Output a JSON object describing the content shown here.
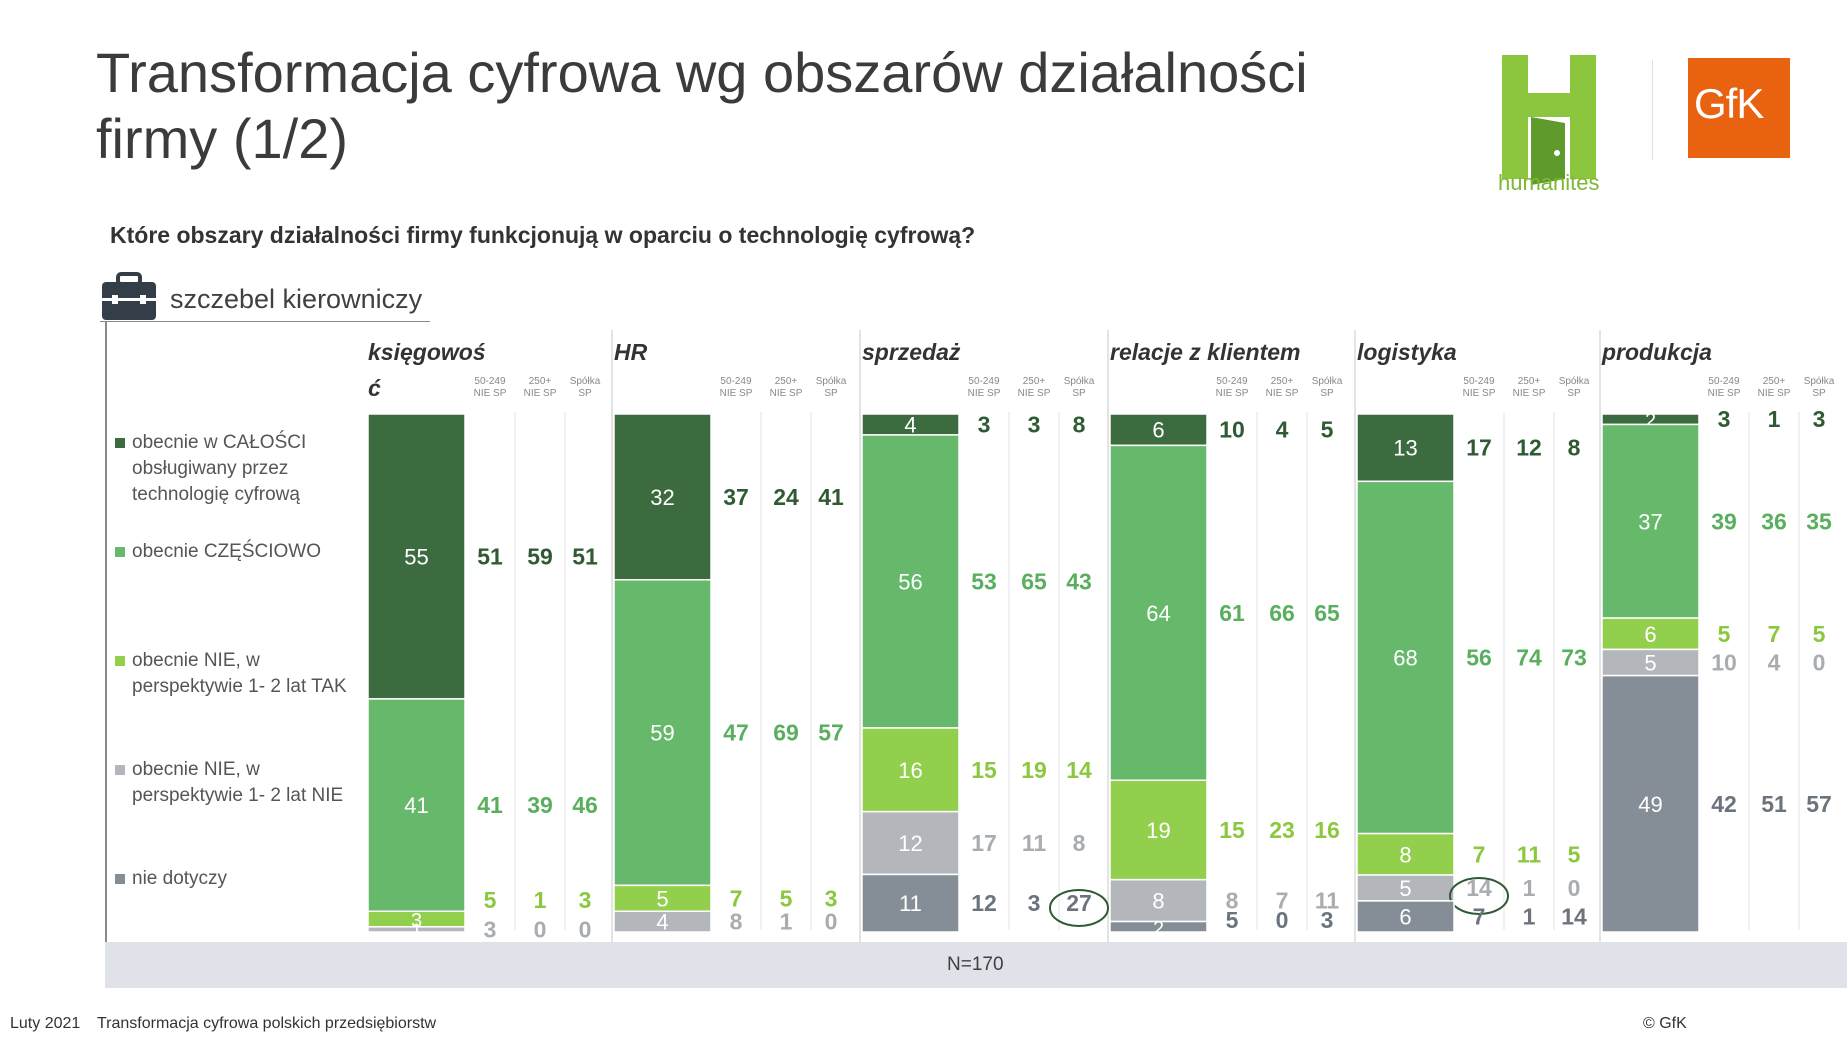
{
  "title": "Transformacja cyfrowa wg obszarów działalności firmy (1/2)",
  "logos": {
    "humanites": "humanites",
    "gfk": "GfK"
  },
  "question": "Które obszary działalności firmy funkcjonują w oparciu o technologię cyfrową?",
  "level_label": "szczebel kierowniczy",
  "icons": {
    "level_icon": "briefcase-icon"
  },
  "base": "N=170",
  "footer": {
    "date": "Luty 2021",
    "source": "Transformacja cyfrowa polskich przedsiębiorstw",
    "copyright": "© GfK"
  },
  "colors": {
    "full": "#3d6b40",
    "partial": "#66b86a",
    "plan_yes": "#92cf4c",
    "plan_no": "#b3b6ba",
    "na": "#858e96"
  },
  "chart_data": {
    "type": "bar",
    "stacked": true,
    "unit": "%",
    "subgroups": [
      "50-249 NIE SP",
      "250+ NIE SP",
      "Spółka SP"
    ],
    "legend": [
      {
        "key": "full",
        "label": "obecnie w CAŁOŚCI obsługiwany przez technologię cyfrową"
      },
      {
        "key": "partial",
        "label": "obecnie CZĘŚCIOWO"
      },
      {
        "key": "plan_yes",
        "label": "obecnie NIE, w perspektywie 1- 2 lat TAK"
      },
      {
        "key": "plan_no",
        "label": "obecnie NIE, w perspektywie 1- 2 lat NIE"
      },
      {
        "key": "na",
        "label": "nie dotyczy"
      }
    ],
    "categories": [
      "księgowość",
      "HR",
      "sprzedaż",
      "relacje z klientem",
      "logistyka",
      "produkcja"
    ],
    "category_labels": [
      [
        "księgowoś",
        "ć"
      ],
      [
        "HR"
      ],
      [
        "sprzedaż"
      ],
      [
        "relacje z klientem"
      ],
      [
        "logistyka"
      ],
      [
        "produkcja"
      ]
    ],
    "series": [
      {
        "key": "full",
        "total": [
          55,
          32,
          4,
          6,
          13,
          2
        ],
        "groups": [
          [
            51,
            59,
            51
          ],
          [
            37,
            24,
            41
          ],
          [
            3,
            3,
            8
          ],
          [
            10,
            4,
            5
          ],
          [
            17,
            12,
            8
          ],
          [
            3,
            1,
            3
          ]
        ]
      },
      {
        "key": "partial",
        "total": [
          41,
          59,
          56,
          64,
          68,
          37
        ],
        "groups": [
          [
            41,
            39,
            46
          ],
          [
            47,
            69,
            57
          ],
          [
            53,
            65,
            43
          ],
          [
            61,
            66,
            65
          ],
          [
            56,
            74,
            73
          ],
          [
            39,
            36,
            35
          ]
        ]
      },
      {
        "key": "plan_yes",
        "total": [
          3,
          5,
          16,
          19,
          8,
          6
        ],
        "groups": [
          [
            5,
            1,
            3
          ],
          [
            7,
            5,
            3
          ],
          [
            15,
            19,
            14
          ],
          [
            15,
            23,
            16
          ],
          [
            7,
            11,
            5
          ],
          [
            5,
            7,
            5
          ]
        ]
      },
      {
        "key": "plan_no",
        "total": [
          1,
          4,
          12,
          8,
          5,
          5
        ],
        "groups": [
          [
            3,
            0,
            0
          ],
          [
            8,
            1,
            0
          ],
          [
            17,
            11,
            8
          ],
          [
            8,
            7,
            11
          ],
          [
            14,
            1,
            0
          ],
          [
            10,
            4,
            0
          ]
        ]
      },
      {
        "key": "na",
        "total": [
          0,
          0,
          11,
          2,
          6,
          49
        ],
        "groups": [
          [
            null,
            null,
            null
          ],
          [
            null,
            null,
            null
          ],
          [
            12,
            3,
            27
          ],
          [
            5,
            0,
            3
          ],
          [
            7,
            1,
            14
          ],
          [
            42,
            51,
            57
          ]
        ]
      }
    ],
    "highlighted": [
      {
        "category": "sprzedaż",
        "series": "na",
        "group": "Spółka SP",
        "value": 27
      },
      {
        "category": "logistyka",
        "series": "plan_no",
        "group": "50-249 NIE SP",
        "value": 14
      }
    ]
  }
}
